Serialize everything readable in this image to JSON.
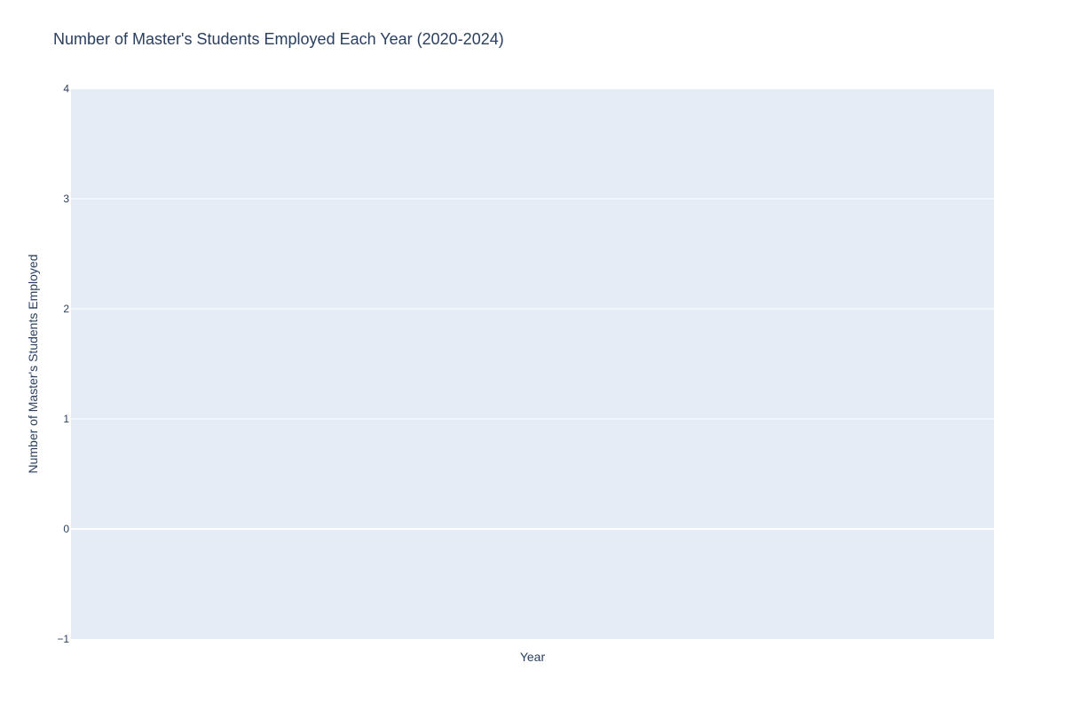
{
  "colors": {
    "plot_background": "#e5ecf6",
    "gridline": "#ffffff",
    "zeroline": "#ffffff",
    "text": "#2a3f5f"
  },
  "chart_data": {
    "type": "line",
    "title": "Number of Master's Students Employed Each Year (2020-2024)",
    "xlabel": "Year",
    "ylabel": "Number of Master's Students Employed",
    "x": [],
    "series": [],
    "ylim": [
      -1,
      4
    ],
    "yticks": [
      -1,
      0,
      1,
      2,
      3,
      4
    ],
    "ytick_labels": [
      "−1",
      "0",
      "1",
      "2",
      "3",
      "4"
    ],
    "grid": true,
    "legend": "none"
  }
}
